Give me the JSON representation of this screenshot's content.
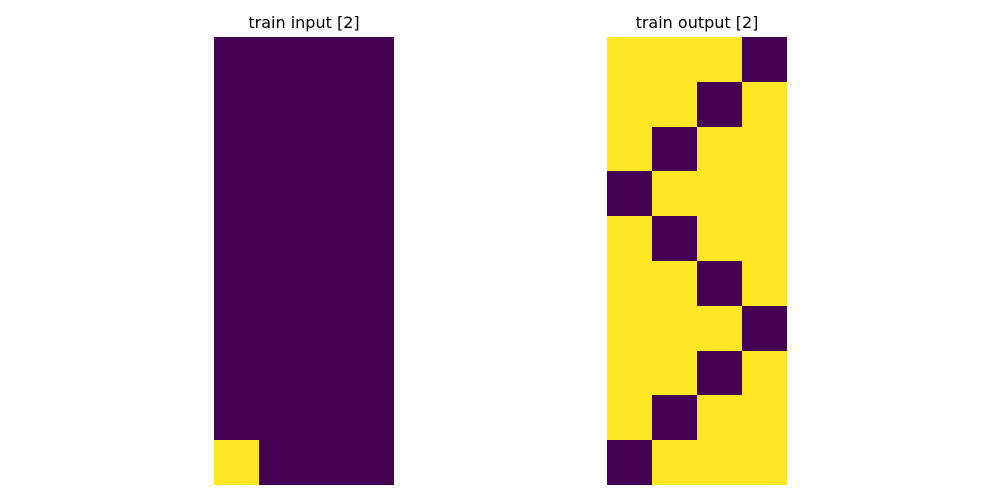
{
  "colors": {
    "0": "#440154",
    "1": "#fde725"
  },
  "panels": [
    {
      "title": "train input [2]",
      "rows": [
        [
          0,
          0,
          0,
          0
        ],
        [
          0,
          0,
          0,
          0
        ],
        [
          0,
          0,
          0,
          0
        ],
        [
          0,
          0,
          0,
          0
        ],
        [
          0,
          0,
          0,
          0
        ],
        [
          0,
          0,
          0,
          0
        ],
        [
          0,
          0,
          0,
          0
        ],
        [
          0,
          0,
          0,
          0
        ],
        [
          0,
          0,
          0,
          0
        ],
        [
          1,
          0,
          0,
          0
        ]
      ]
    },
    {
      "title": "train output [2]",
      "rows": [
        [
          1,
          1,
          1,
          0
        ],
        [
          1,
          1,
          0,
          1
        ],
        [
          1,
          0,
          1,
          1
        ],
        [
          0,
          1,
          1,
          1
        ],
        [
          1,
          0,
          1,
          1
        ],
        [
          1,
          1,
          0,
          1
        ],
        [
          1,
          1,
          1,
          0
        ],
        [
          1,
          1,
          0,
          1
        ],
        [
          1,
          0,
          1,
          1
        ],
        [
          0,
          1,
          1,
          1
        ]
      ]
    }
  ]
}
